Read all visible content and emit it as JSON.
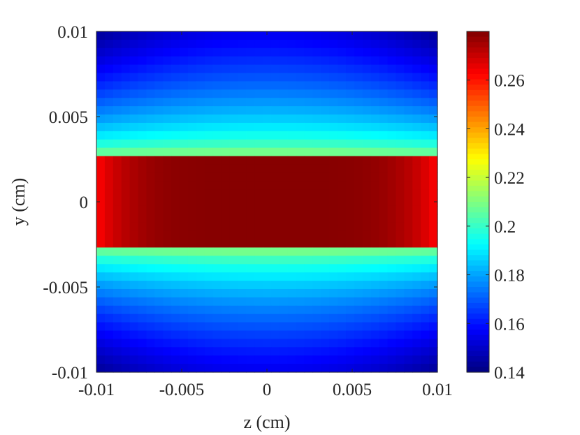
{
  "chart_data": {
    "type": "heatmap",
    "xlabel": "z (cm)",
    "ylabel": "y (cm)",
    "xlim": [
      -0.01,
      0.01
    ],
    "ylim": [
      -0.01,
      0.01
    ],
    "xticks": [
      "-0.01",
      "-0.005",
      "0",
      "0.005",
      "0.01"
    ],
    "yticks": [
      "-0.01",
      "-0.005",
      "0",
      "0.005",
      "0.01"
    ],
    "colormap": "jet",
    "colorbar": {
      "range": [
        0.14,
        0.28
      ],
      "ticks": [
        "0.14",
        "0.16",
        "0.18",
        "0.2",
        "0.22",
        "0.24",
        "0.26"
      ],
      "position": "right"
    },
    "grid": {
      "nz": 41,
      "ny": 41,
      "core_band_y": [
        -0.0025,
        0.0025
      ],
      "core_values": {
        "center": 0.279,
        "edge": 0.262
      },
      "outer_values": {
        "at_band_edge": 0.225,
        "at_boundary_center": 0.155,
        "at_corner": 0.143
      }
    }
  }
}
